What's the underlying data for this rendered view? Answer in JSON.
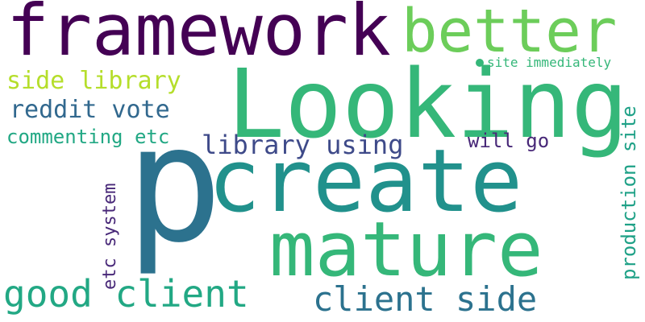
{
  "words": {
    "framework": "framework",
    "better": "better",
    "looking": "Looking",
    "side_library": "side library",
    "site_immediately": "site immediately",
    "reddit_vote": "reddit vote",
    "commenting_etc": "commenting etc",
    "library_using": "library using",
    "will_go": "will go",
    "etc_system": "etc system",
    "production_site": "production site",
    "p": "p",
    "create": "create",
    "mature": "mature",
    "good_client": "good client",
    "client_side": "client side"
  },
  "colors": {
    "background": "#ffffff",
    "palette": [
      "#440154",
      "#482878",
      "#3e4a89",
      "#31688e",
      "#2c728e",
      "#21918c",
      "#1fa187",
      "#22a884",
      "#35b779",
      "#6ccd5a",
      "#b5de2b"
    ]
  }
}
